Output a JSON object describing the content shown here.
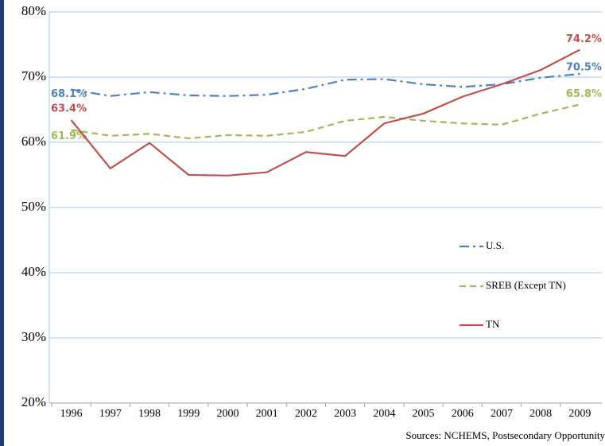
{
  "chart_data": {
    "type": "line",
    "categories": [
      "1996",
      "1997",
      "1998",
      "1999",
      "2000",
      "2001",
      "2002",
      "2003",
      "2004",
      "2005",
      "2006",
      "2007",
      "2008",
      "2009"
    ],
    "series": [
      {
        "name": "U.S.",
        "color": "#4f81bd",
        "dash": "dash-dot",
        "values": [
          68.1,
          67.1,
          67.7,
          67.2,
          67.1,
          67.3,
          68.2,
          69.6,
          69.7,
          68.9,
          68.5,
          68.9,
          69.9,
          70.5
        ],
        "value_labels": [
          "68.1%",
          null,
          null,
          null,
          null,
          null,
          null,
          null,
          null,
          null,
          null,
          null,
          null,
          "70.5%"
        ]
      },
      {
        "name": "SREB (Except TN)",
        "color": "#9bbb59",
        "dash": "dashed",
        "values": [
          61.9,
          61.0,
          61.3,
          60.6,
          61.1,
          61.0,
          61.6,
          63.3,
          63.9,
          63.3,
          62.9,
          62.7,
          64.4,
          65.8
        ],
        "value_labels": [
          "61.9%",
          null,
          null,
          null,
          null,
          null,
          null,
          null,
          null,
          null,
          null,
          null,
          null,
          "65.8%"
        ]
      },
      {
        "name": "TN",
        "color": "#c0504d",
        "dash": "solid",
        "values": [
          63.4,
          56.0,
          59.9,
          55.0,
          54.9,
          55.4,
          58.5,
          57.9,
          62.9,
          64.4,
          67.0,
          68.9,
          71.1,
          74.2
        ],
        "value_labels": [
          "63.4%",
          null,
          null,
          null,
          null,
          null,
          null,
          null,
          null,
          null,
          null,
          null,
          null,
          "74.2%"
        ]
      }
    ],
    "ylim": [
      20,
      80
    ],
    "yticks": [
      {
        "value": 20,
        "label": "20%"
      },
      {
        "value": 30,
        "label": "30%"
      },
      {
        "value": 40,
        "label": "40%"
      },
      {
        "value": 50,
        "label": "50%"
      },
      {
        "value": 60,
        "label": "60%"
      },
      {
        "value": 70,
        "label": "70%"
      },
      {
        "value": 80,
        "label": "80%"
      }
    ],
    "grid": true,
    "legend": "right",
    "source": "Sources: NCHEMS, Postsecondary Opportunity"
  }
}
